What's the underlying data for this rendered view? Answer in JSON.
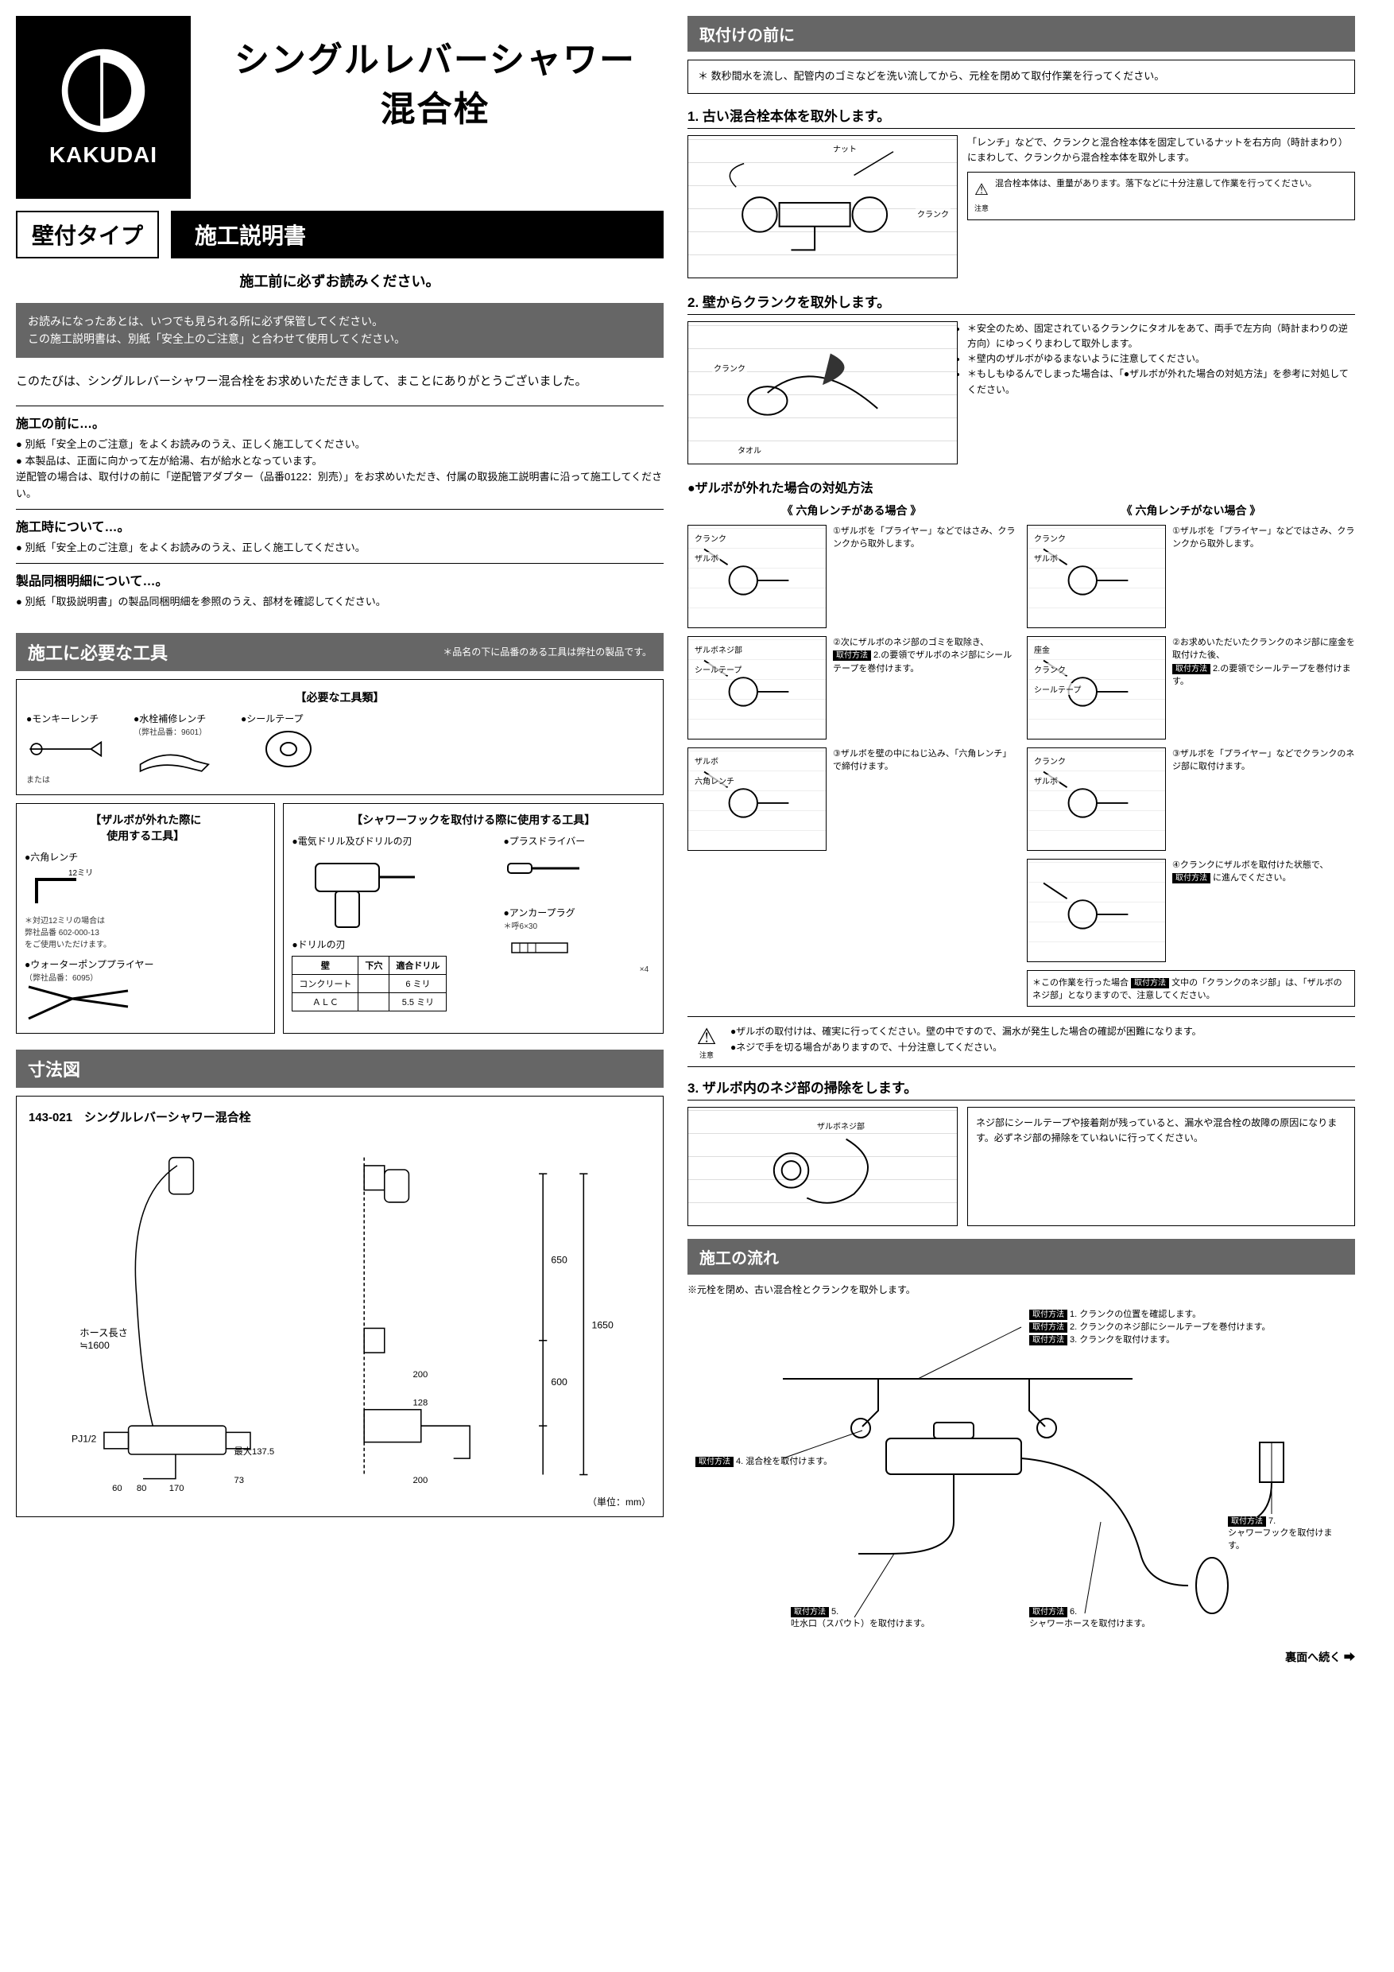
{
  "brand": {
    "name": "KAKUDAI"
  },
  "product": {
    "title_line1": "シングルレバーシャワー",
    "title_line2": "混合栓",
    "type": "壁付タイプ",
    "manual_label": "施工説明書"
  },
  "read_first": "施工前に必ずお読みください。",
  "notice": "お読みになったあとは、いつでも見られる所に必ず保管してください。\nこの施工説明書は、別紙「安全上のご注意」と合わせて使用してください。",
  "thanks": "このたびは、シングルレバーシャワー混合栓をお求めいただきまして、まことにありがとうございました。",
  "pre_sections": [
    {
      "title": "施工の前に…。",
      "items": [
        "別紙「安全上のご注意」をよくお読みのうえ、正しく施工してください。",
        "本製品は、正面に向かって左が給湯、右が給水となっています。\n逆配管の場合は、取付けの前に「逆配管アダプター（品番0122：別売）」をお求めいただき、付属の取扱施工説明書に沿って施工してください。"
      ]
    },
    {
      "title": "施工時について…。",
      "items": [
        "別紙「安全上のご注意」をよくお読みのうえ、正しく施工してください。"
      ]
    },
    {
      "title": "製品同梱明細について…。",
      "items": [
        "別紙「取扱説明書」の製品同梱明細を参照のうえ、部材を確認してください。"
      ]
    }
  ],
  "tools": {
    "heading": "施工に必要な工具",
    "sub": "＊品名の下に品番のある工具は弊社の製品です。",
    "required_header": "【必要な工具類】",
    "required": [
      {
        "name": "●モンキーレンチ",
        "note": "または"
      },
      {
        "name": "●水栓補修レンチ",
        "note": "（弊社品番：9601）"
      },
      {
        "name": "●シールテープ",
        "note": ""
      }
    ],
    "zarubo_header": "【ザルボが外れた際に\n使用する工具】",
    "zarubo": [
      {
        "name": "●六角レンチ",
        "note": "12ミリ",
        "extra": "＊対辺12ミリの場合は\n弊社品番 602-000-13\nをご使用いただけます。"
      },
      {
        "name": "●ウォーターポンププライヤー",
        "note": "（弊社品番：6095）"
      }
    ],
    "hook_header": "【シャワーフックを取付ける際に使用する工具】",
    "hook": [
      {
        "name": "●電気ドリル及びドリルの刃"
      },
      {
        "name": "●プラスドライバー"
      },
      {
        "name": "●アンカープラグ",
        "note": "＊呼6×30",
        "qty": "×4"
      }
    ],
    "drill_table": {
      "header": "●ドリルの刃",
      "cols": [
        "壁",
        "下穴",
        "適合ドリル"
      ],
      "rows": [
        [
          "コンクリート",
          "",
          "6 ミリ"
        ],
        [
          "ＡＬＣ",
          "",
          "5.5 ミリ"
        ]
      ]
    }
  },
  "dimensions": {
    "heading": "寸法図",
    "model": "143-021　シングルレバーシャワー混合栓",
    "values": {
      "hose": "ホース長さ\n≒1600",
      "h_total": "1650",
      "h_upper": "650",
      "h_lower": "600",
      "w_200a": "200",
      "w_200b": "200",
      "w_128": "128",
      "pj": "PJ1/2",
      "max": "最大137.5",
      "d60": "60",
      "d73": "73",
      "d80": "80",
      "d170": "170"
    },
    "unit": "（単位：mm）"
  },
  "right": {
    "pre_heading": "取付けの前に",
    "pre_note": "数秒間水を流し、配管内のゴミなどを洗い流してから、元栓を閉めて取付作業を行ってください。",
    "steps": {
      "s1": {
        "title": "1. 古い混合栓本体を取外します。",
        "labels": {
          "nut": "ナット",
          "crank": "クランク"
        },
        "text": "「レンチ」などで、クランクと混合栓本体を固定しているナットを右方向（時計まわり）にまわして、クランクから混合栓本体を取外します。",
        "warn": "混合栓本体は、重量があります。落下などに十分注意して作業を行ってください。"
      },
      "s2": {
        "title": "2. 壁からクランクを取外します。",
        "labels": {
          "crank": "クランク",
          "towel": "タオル"
        },
        "notes": [
          "安全のため、固定されているクランクにタオルをあて、両手で左方向（時計まわりの逆方向）にゆっくりまわして取外します。",
          "壁内のザルボがゆるまないように注意してください。",
          "もしもゆるんでしまった場合は、「●ザルボが外れた場合の対処方法」を参考に対処してください。"
        ]
      },
      "zarubo_heading": "●ザルボが外れた場合の対処方法",
      "case_a": {
        "title": "《 六角レンチがある場合 》",
        "steps": [
          {
            "n": "①",
            "txt": "ザルボを「プライヤー」などではさみ、クランクから取外します。",
            "labels": [
              "クランク",
              "ザルボ"
            ]
          },
          {
            "n": "②",
            "txt": "次にザルボのネジ部のゴミを取除き、",
            "txt2": "2.の要領でザルボのネジ部にシールテープを巻付けます。",
            "tag": "取付方法",
            "labels": [
              "ザルボネジ部",
              "シールテープ"
            ]
          },
          {
            "n": "③",
            "txt": "ザルボを壁の中にねじ込み、「六角レンチ」で締付けます。",
            "labels": [
              "ザルボ",
              "六角レンチ"
            ]
          }
        ]
      },
      "case_b": {
        "title": "《 六角レンチがない場合 》",
        "steps": [
          {
            "n": "①",
            "txt": "ザルボを「プライヤー」などではさみ、クランクから取外します。",
            "labels": [
              "クランク",
              "ザルボ"
            ]
          },
          {
            "n": "②",
            "txt": "お求めいただいたクランクのネジ部に座金を取付けた後、",
            "txt2": "2.の要領でシールテープを巻付けます。",
            "tag": "取付方法",
            "labels": [
              "座金",
              "クランク",
              "シールテープ"
            ]
          },
          {
            "n": "③",
            "txt": "ザルボを「プライヤー」などでクランクのネジ部に取付けます。",
            "labels": [
              "クランク",
              "ザルボ"
            ]
          },
          {
            "n": "④",
            "txt": "クランクにザルボを取付けた状態で、",
            "txt2": "に進んでください。",
            "tag": "取付方法"
          }
        ],
        "foot": "＊この作業を行った場合",
        "foot_tag": "取付方法",
        "foot2": "文中の「クランクのネジ部」は、「ザルボのネジ部」となりますので、注意してください。"
      },
      "final_warn": [
        "ザルボの取付けは、確実に行ってください。壁の中ですので、漏水が発生した場合の確認が困難になります。",
        "ネジで手を切る場合がありますので、十分注意してください。"
      ],
      "s3": {
        "title": "3. ザルボ内のネジ部の掃除をします。",
        "label": "ザルボネジ部",
        "text": "ネジ部にシールテープや接着剤が残っていると、漏水や混合栓の故障の原因になります。必ずネジ部の掃除をていねいに行ってください。"
      }
    },
    "flow": {
      "heading": "施工の流れ",
      "note": "※元栓を閉め、古い混合栓とクランクを取外します。",
      "items": [
        {
          "tag": "取付方法",
          "n": "1.",
          "txt": "クランクの位置を確認します。"
        },
        {
          "tag": "取付方法",
          "n": "2.",
          "txt": "クランクのネジ部にシールテープを巻付けます。"
        },
        {
          "tag": "取付方法",
          "n": "3.",
          "txt": "クランクを取付けます。"
        },
        {
          "tag": "取付方法",
          "n": "4.",
          "txt": "混合栓を取付けます。"
        },
        {
          "tag": "取付方法",
          "n": "5.",
          "txt": "吐水口（スパウト）を取付けます。"
        },
        {
          "tag": "取付方法",
          "n": "6.",
          "txt": "シャワーホースを取付けます。"
        },
        {
          "tag": "取付方法",
          "n": "7.",
          "txt": "シャワーフックを取付けます。"
        }
      ]
    },
    "continue": "裏面へ続く ➡"
  }
}
